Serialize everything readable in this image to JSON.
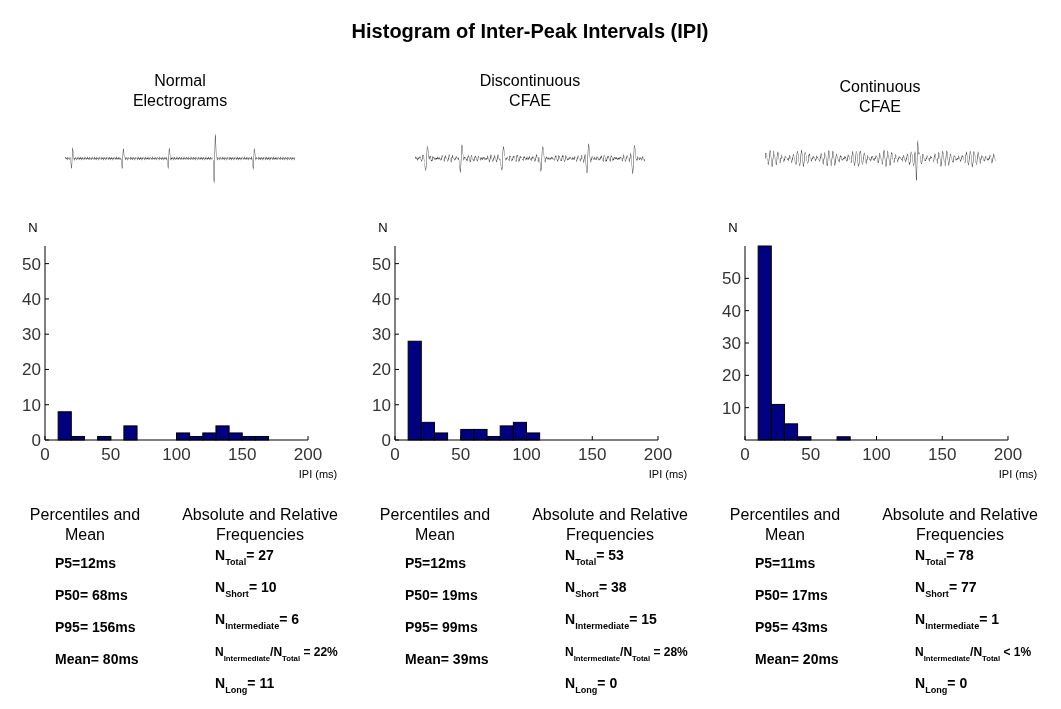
{
  "chart_data": [
    {
      "type": "other",
      "title": "Histogram of Inter-Peak Intervals (IPI)"
    },
    {
      "type": "histogram",
      "title": "Normal Electrograms",
      "xlabel": "IPI (ms)",
      "ylabel": "N",
      "color": "#000080",
      "bins": [
        0,
        10,
        20,
        30,
        40,
        50,
        60,
        70,
        80,
        90,
        100,
        110,
        120,
        130,
        140,
        150,
        160,
        170,
        180,
        190,
        200
      ],
      "values": [
        0,
        8,
        1,
        0,
        1,
        0,
        4,
        0,
        0,
        0,
        2,
        1,
        2,
        4,
        2,
        1,
        1,
        0,
        0,
        0
      ],
      "xlim": [
        0,
        200
      ],
      "xticks": [
        0,
        50,
        100,
        150,
        200
      ],
      "ylim": [
        0,
        55
      ],
      "yticks": [
        0,
        10,
        20,
        30,
        40,
        50
      ],
      "grid": false,
      "annotations": [
        "Percentiles and Mean",
        "P5=12ms",
        "P50= 68ms",
        "P95= 156ms",
        "Mean= 80ms",
        "Absolute and Relative Frequencies",
        "N$_{Total}$= 27",
        "N$_{Short}$= 10",
        "N$_{Intermediate}$= 6",
        "N$_{Intermediate}$/N$_{Total}$ = 22%",
        "N$_{Long}$= 11"
      ]
    },
    {
      "type": "histogram",
      "title": "Discontinuous CFAE",
      "xlabel": "IPI (ms)",
      "ylabel": "N",
      "color": "#000080",
      "bins": [
        0,
        10,
        20,
        30,
        40,
        50,
        60,
        70,
        80,
        90,
        100,
        110,
        120,
        130,
        140,
        150,
        160,
        170,
        180,
        190,
        200
      ],
      "values": [
        0,
        28,
        5,
        2,
        0,
        3,
        3,
        1,
        4,
        5,
        2,
        0,
        0,
        0,
        0,
        0,
        0,
        0,
        0,
        0
      ],
      "xlim": [
        0,
        200
      ],
      "xticks": [
        0,
        50,
        100,
        150,
        200
      ],
      "ylim": [
        0,
        55
      ],
      "yticks": [
        0,
        10,
        20,
        30,
        40,
        50
      ],
      "grid": false,
      "annotations": [
        "Percentiles and Mean",
        "P5=12ms",
        "P50= 19ms",
        "P95= 99ms",
        "Mean= 39ms",
        "Absolute and Relative Frequencies",
        "N$_{Total}$= 53",
        "N$_{Short}$= 38",
        "N$_{Intermediate}$= 15",
        "N$_{Intermediate}$/N$_{Total}$ = 28%",
        "N$_{Long}$= 0"
      ]
    },
    {
      "type": "histogram",
      "title": "Continuous CFAE",
      "xlabel": "IPI (ms)",
      "ylabel": "N",
      "color": "#000080",
      "bins": [
        0,
        10,
        20,
        30,
        40,
        50,
        60,
        70,
        80,
        90,
        100,
        110,
        120,
        130,
        140,
        150,
        160,
        170,
        180,
        190,
        200
      ],
      "values": [
        0,
        60,
        11,
        5,
        1,
        0,
        0,
        1,
        0,
        0,
        0,
        0,
        0,
        0,
        0,
        0,
        0,
        0,
        0,
        0
      ],
      "xlim": [
        0,
        200
      ],
      "xticks": [
        0,
        50,
        100,
        150,
        200
      ],
      "ylim": [
        0,
        60
      ],
      "yticks": [
        10,
        20,
        30,
        40,
        50
      ],
      "grid": false,
      "annotations": [
        "Percentiles and Mean",
        "P5=11ms",
        "P50= 17ms",
        "P95= 43ms",
        "Mean= 20ms",
        "Absolute and Relative Frequencies",
        "N$_{Total}$= 78",
        "N$_{Short}$= 77",
        "N$_{Intermediate}$= 1",
        "N$_{Intermediate}$/N$_{Total}$ < 1%",
        "N$_{Long}$= 0"
      ]
    }
  ]
}
